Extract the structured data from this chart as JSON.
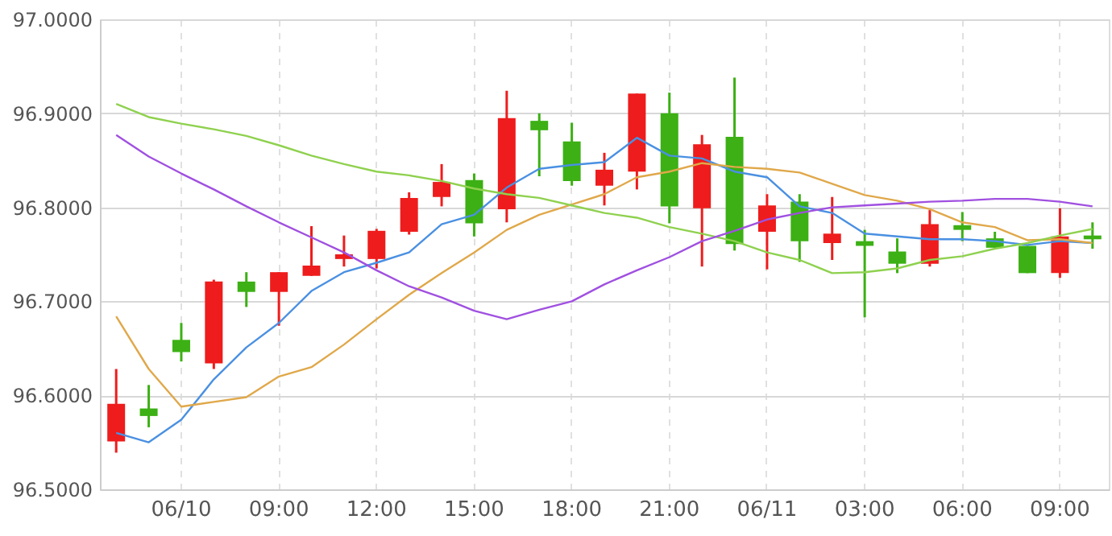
{
  "chart_data": {
    "type": "candlestick",
    "categories": [
      null,
      null,
      "06/10",
      null,
      null,
      "09:00",
      null,
      null,
      "12:00",
      null,
      null,
      "15:00",
      null,
      null,
      "18:00",
      null,
      null,
      "21:00",
      null,
      null,
      "06/11",
      null,
      null,
      "03:00",
      null,
      null,
      "06:00",
      null,
      null,
      "09:00",
      null
    ],
    "ohlc": [
      [
        96.551,
        96.628,
        96.539,
        96.591
      ],
      [
        96.586,
        96.611,
        96.566,
        96.578
      ],
      [
        96.659,
        96.677,
        96.636,
        96.646
      ],
      [
        96.634,
        96.723,
        96.628,
        96.721
      ],
      [
        96.721,
        96.731,
        96.694,
        96.71
      ],
      [
        96.71,
        96.731,
        96.674,
        96.731
      ],
      [
        96.727,
        96.78,
        96.727,
        96.738
      ],
      [
        96.745,
        96.77,
        96.737,
        96.75
      ],
      [
        96.745,
        96.777,
        96.735,
        96.775
      ],
      [
        96.774,
        96.816,
        96.771,
        96.81
      ],
      [
        96.811,
        96.846,
        96.801,
        96.827
      ],
      [
        96.829,
        96.836,
        96.769,
        96.783
      ],
      [
        96.798,
        96.924,
        96.784,
        96.895
      ],
      [
        96.892,
        96.9,
        96.833,
        96.882
      ],
      [
        96.87,
        96.89,
        96.823,
        96.828
      ],
      [
        96.823,
        96.858,
        96.802,
        96.84
      ],
      [
        96.838,
        96.921,
        96.819,
        96.921
      ],
      [
        96.9,
        96.922,
        96.783,
        96.801
      ],
      [
        96.799,
        96.877,
        96.737,
        96.867
      ],
      [
        96.875,
        96.938,
        96.754,
        96.761
      ],
      [
        96.774,
        96.814,
        96.734,
        96.802
      ],
      [
        96.806,
        96.814,
        96.742,
        96.764
      ],
      [
        96.762,
        96.811,
        96.744,
        96.772
      ],
      [
        96.764,
        96.776,
        96.683,
        96.759
      ],
      [
        96.753,
        96.767,
        96.73,
        96.74
      ],
      [
        96.74,
        96.797,
        96.737,
        96.782
      ],
      [
        96.781,
        96.795,
        96.764,
        96.776
      ],
      [
        96.767,
        96.774,
        96.757,
        96.757
      ],
      [
        96.759,
        96.759,
        96.73,
        96.73
      ],
      [
        96.73,
        96.799,
        96.725,
        96.769
      ],
      [
        96.77,
        96.784,
        96.756,
        96.766
      ]
    ],
    "colors": [
      "#ee1c1c",
      "#3cb014",
      "#3cb014",
      "#ee1c1c",
      "#3cb014",
      "#ee1c1c",
      "#ee1c1c",
      "#ee1c1c",
      "#ee1c1c",
      "#ee1c1c",
      "#ee1c1c",
      "#3cb014",
      "#ee1c1c",
      "#3cb014",
      "#3cb014",
      "#ee1c1c",
      "#ee1c1c",
      "#3cb014",
      "#ee1c1c",
      "#3cb014",
      "#ee1c1c",
      "#3cb014",
      "#ee1c1c",
      "#3cb014",
      "#3cb014",
      "#ee1c1c",
      "#3cb014",
      "#3cb014",
      "#3cb014",
      "#ee1c1c",
      "#3cb014"
    ],
    "series": [
      {
        "type": "line",
        "color": "#4a90e2",
        "values": [
          96.56,
          96.55,
          96.574,
          96.617,
          96.651,
          96.677,
          96.711,
          96.731,
          96.741,
          96.752,
          96.782,
          96.792,
          96.821,
          96.841,
          96.845,
          96.848,
          96.874,
          96.855,
          96.852,
          96.838,
          96.832,
          96.801,
          96.794,
          96.772,
          96.769,
          96.766,
          96.766,
          96.764,
          96.76,
          96.764,
          96.762
        ]
      },
      {
        "type": "line",
        "color": "#e0a84a",
        "values": [
          96.684,
          96.628,
          96.588,
          96.593,
          96.598,
          96.62,
          96.63,
          96.654,
          96.681,
          96.707,
          96.73,
          96.752,
          96.776,
          96.792,
          96.803,
          96.814,
          96.832,
          96.838,
          96.847,
          96.843,
          96.841,
          96.837,
          96.825,
          96.813,
          96.807,
          96.798,
          96.784,
          96.779,
          96.765,
          96.766,
          96.762
        ]
      },
      {
        "type": "line",
        "color": "#8fd14f",
        "values": [
          96.91,
          96.896,
          96.889,
          96.883,
          96.876,
          96.866,
          96.855,
          96.846,
          96.838,
          96.834,
          96.828,
          96.82,
          96.814,
          96.81,
          96.802,
          96.794,
          96.789,
          96.779,
          96.772,
          96.764,
          96.752,
          96.744,
          96.73,
          96.731,
          96.735,
          96.744,
          96.748,
          96.756,
          96.762,
          96.77,
          96.777
        ]
      },
      {
        "type": "line",
        "color": "#a050e0",
        "values": [
          96.877,
          96.854,
          96.836,
          96.819,
          96.801,
          96.784,
          96.768,
          96.752,
          96.733,
          96.716,
          96.704,
          96.69,
          96.681,
          96.691,
          96.7,
          96.718,
          96.733,
          96.747,
          96.764,
          96.775,
          96.787,
          96.794,
          96.8,
          96.802,
          96.804,
          96.806,
          96.807,
          96.809,
          96.809,
          96.806,
          96.801
        ]
      }
    ],
    "ylim": [
      96.5,
      97.0
    ],
    "yticks": [
      {
        "value": 96.5,
        "label": "96.5000"
      },
      {
        "value": 96.6,
        "label": "96.6000"
      },
      {
        "value": 96.7,
        "label": "96.7000"
      },
      {
        "value": 96.8,
        "label": "96.8000"
      },
      {
        "value": 96.9,
        "label": "96.9000"
      },
      {
        "value": 97.0,
        "label": "97.0000"
      }
    ],
    "grid": true
  }
}
